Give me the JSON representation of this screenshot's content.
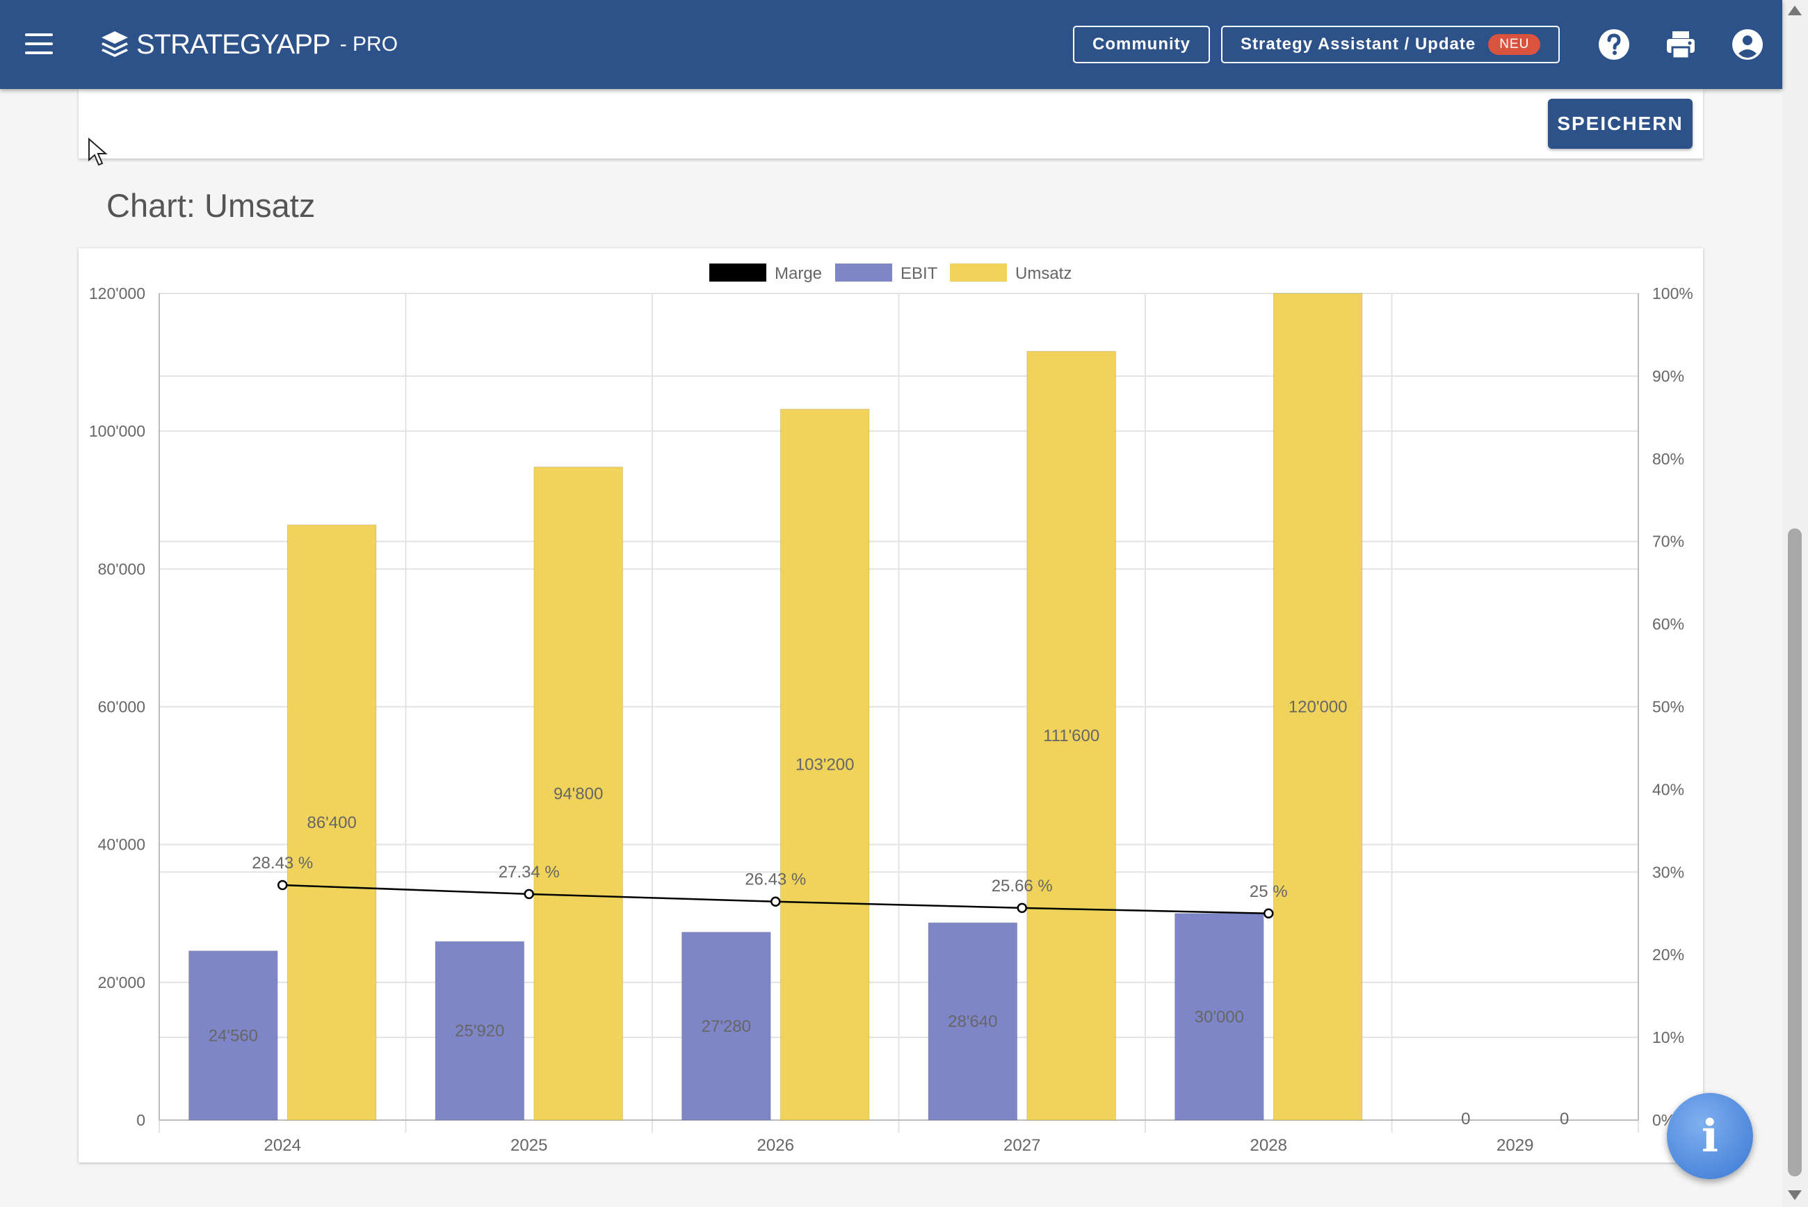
{
  "header": {
    "logo_text": "STRATEGYAPP",
    "logo_suffix": "- PRO",
    "community_label": "Community",
    "assistant_label": "Strategy Assistant / Update",
    "assistant_badge": "NEU"
  },
  "toolbar": {
    "save_label": "SPEICHERN"
  },
  "section": {
    "title": "Chart: Umsatz"
  },
  "colors": {
    "header_bg": "#2c5289",
    "ebit": "#7f86c8",
    "umsatz": "#f0d35a",
    "marge": "#000000",
    "badge": "#d9533f"
  },
  "chart_data": {
    "type": "bar",
    "categories": [
      "2024",
      "2025",
      "2026",
      "2027",
      "2028",
      "2029"
    ],
    "series": [
      {
        "name": "EBIT",
        "type": "bar",
        "axis": "left",
        "color": "#7f86c8",
        "values": [
          24560,
          25920,
          27280,
          28640,
          30000,
          0
        ],
        "labels": [
          "24'560",
          "25'920",
          "27'280",
          "28'640",
          "30'000",
          "0"
        ]
      },
      {
        "name": "Umsatz",
        "type": "bar",
        "axis": "left",
        "color": "#f0d35a",
        "values": [
          86400,
          94800,
          103200,
          111600,
          120000,
          0
        ],
        "labels": [
          "86'400",
          "94'800",
          "103'200",
          "111'600",
          "120'000",
          "0"
        ]
      },
      {
        "name": "Marge",
        "type": "line",
        "axis": "right",
        "color": "#000000",
        "values": [
          28.43,
          27.34,
          26.43,
          25.66,
          25,
          null
        ],
        "labels": [
          "28.43 %",
          "27.34 %",
          "26.43 %",
          "25.66 %",
          "25 %",
          ""
        ]
      }
    ],
    "legend": {
      "position": "top",
      "entries": [
        "Marge",
        "EBIT",
        "Umsatz"
      ]
    },
    "ylim": [
      0,
      120000
    ],
    "yticks": [
      "0",
      "20'000",
      "40'000",
      "60'000",
      "80'000",
      "100'000",
      "120'000"
    ],
    "y2lim": [
      0,
      100
    ],
    "y2ticks": [
      "0%",
      "10%",
      "20%",
      "30%",
      "40%",
      "50%",
      "60%",
      "70%",
      "80%",
      "90%",
      "100%"
    ],
    "grid": true
  }
}
